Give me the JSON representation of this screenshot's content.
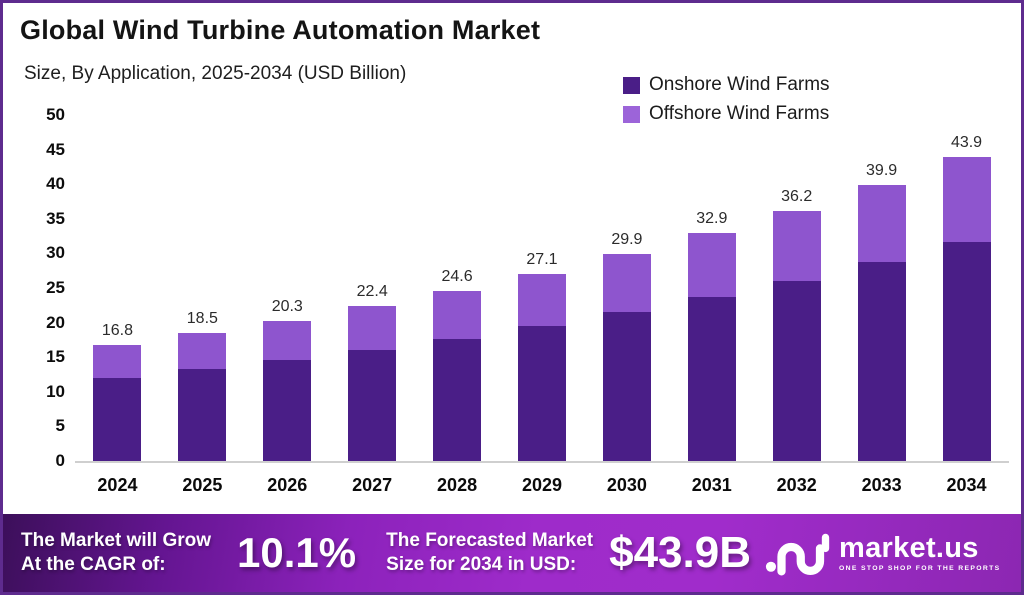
{
  "header": {
    "title": "Global Wind Turbine Automation Market",
    "subtitle": "Size, By Application, 2025-2034 (USD Billion)"
  },
  "colors": {
    "onshore": "#4a1e87",
    "offshore": "#8e55ce",
    "legend_offshore": "#9c64d9",
    "border": "#5e2b8e",
    "axis_line": "#cfcfcf"
  },
  "chart_data": {
    "type": "bar",
    "stacked": true,
    "title": "Global Wind Turbine Automation Market",
    "subtitle": "Size, By Application, 2025-2034 (USD Billion)",
    "xlabel": "",
    "ylabel": "USD Billion",
    "ylim": [
      0,
      50
    ],
    "ytick_step": 5,
    "grid": false,
    "legend_position": "top-right",
    "categories": [
      "2024",
      "2025",
      "2026",
      "2027",
      "2028",
      "2029",
      "2030",
      "2031",
      "2032",
      "2033",
      "2034"
    ],
    "series": [
      {
        "name": "Onshore Wind Farms",
        "color": "#4a1e87",
        "values": [
          12.0,
          13.3,
          14.6,
          16.1,
          17.7,
          19.5,
          21.5,
          23.7,
          26.0,
          28.7,
          31.6
        ]
      },
      {
        "name": "Offshore Wind Farms",
        "color": "#8e55ce",
        "values": [
          4.8,
          5.2,
          5.7,
          6.3,
          6.9,
          7.6,
          8.4,
          9.2,
          10.2,
          11.2,
          12.3
        ]
      }
    ],
    "totals_labels": [
      "16.8",
      "18.5",
      "20.3",
      "22.4",
      "24.6",
      "27.1",
      "29.9",
      "32.9",
      "36.2",
      "39.9",
      "43.9"
    ]
  },
  "legend": [
    {
      "label": "Onshore Wind Farms",
      "color": "#4a1e87"
    },
    {
      "label": "Offshore Wind Farms",
      "color": "#9c64d9"
    }
  ],
  "footer": {
    "cagr_text_line1": "The Market will Grow",
    "cagr_text_line2": "At the CAGR of:",
    "cagr_value": "10.1%",
    "forecast_text_line1": "The Forecasted Market",
    "forecast_text_line2": "Size for 2034 in USD:",
    "forecast_value": "$43.9B",
    "logo_name": "market.us",
    "logo_tagline": "ONE STOP SHOP FOR THE REPORTS"
  }
}
